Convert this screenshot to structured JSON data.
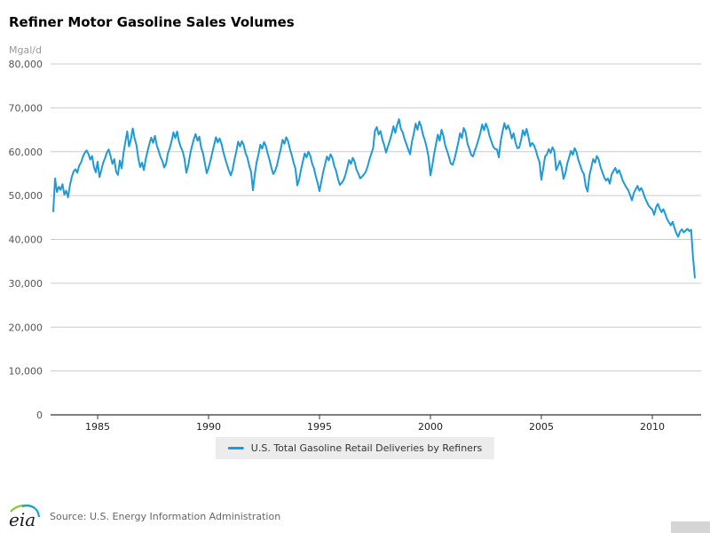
{
  "header": {
    "title": "Refiner Motor Gasoline Sales Volumes"
  },
  "chart_data": {
    "type": "line",
    "title": "Refiner Motor Gasoline Sales Volumes",
    "ylabel": "Mgal/d",
    "unit_label": "Mgal/d",
    "ylim": [
      0,
      80000
    ],
    "y_ticks": [
      0,
      10000,
      20000,
      30000,
      40000,
      50000,
      60000,
      70000,
      80000
    ],
    "x_ticks": [
      1985,
      1990,
      1995,
      2000,
      2005,
      2010
    ],
    "grid": "horizontal",
    "legend_position": "bottom-center",
    "colors": {
      "line": "#1f9ad6",
      "gridline": "#cccccc",
      "axis": "#000000",
      "y_label": "#555555",
      "x_label": "#222222"
    },
    "series": [
      {
        "name": "U.S. Total Gasoline Retail Deliveries by Refiners",
        "color": "#1f9ad6",
        "start_year": 1983,
        "frequency": "monthly",
        "values": [
          46400,
          53900,
          50800,
          52000,
          51300,
          52600,
          50200,
          51100,
          49600,
          52300,
          54200,
          55500,
          56000,
          55200,
          56800,
          57500,
          58800,
          59700,
          60300,
          59500,
          58200,
          59000,
          56500,
          55300,
          57700,
          54200,
          55800,
          57500,
          58500,
          59800,
          60500,
          59000,
          57200,
          58300,
          55500,
          54700,
          58000,
          56200,
          59700,
          62200,
          64600,
          61200,
          62800,
          65300,
          63000,
          61500,
          58500,
          56500,
          57500,
          55800,
          58300,
          60100,
          61800,
          63200,
          62000,
          63600,
          61400,
          60200,
          58800,
          57900,
          56400,
          57200,
          59600,
          60800,
          62400,
          64400,
          63100,
          64600,
          62300,
          61000,
          60100,
          58300,
          55200,
          56800,
          59300,
          61200,
          62800,
          64000,
          62500,
          63400,
          60900,
          59600,
          57400,
          55100,
          56300,
          57900,
          59800,
          61500,
          63300,
          62100,
          63000,
          61800,
          59900,
          58400,
          57000,
          55700,
          54600,
          55900,
          58200,
          60000,
          62300,
          61200,
          62400,
          61500,
          59700,
          58600,
          56800,
          55400,
          51200,
          54800,
          57600,
          59400,
          61600,
          60700,
          62200,
          61300,
          59500,
          58100,
          56300,
          54900,
          55600,
          56900,
          58800,
          60500,
          62700,
          61800,
          63300,
          62400,
          60600,
          59200,
          57500,
          56100,
          52300,
          53700,
          55900,
          57800,
          59600,
          58700,
          60000,
          59100,
          57300,
          56200,
          54400,
          52800,
          51000,
          53200,
          55400,
          57100,
          58900,
          58000,
          59400,
          58500,
          56700,
          55600,
          53800,
          52400,
          52900,
          53500,
          54700,
          56300,
          58100,
          57200,
          58600,
          57700,
          55900,
          55000,
          53900,
          54300,
          54800,
          55400,
          56600,
          58200,
          59500,
          60800,
          64800,
          65600,
          63900,
          64700,
          62800,
          61500,
          59800,
          61200,
          62500,
          64000,
          65800,
          64300,
          66100,
          67400,
          65200,
          64400,
          62900,
          61700,
          60500,
          59400,
          62300,
          64100,
          66400,
          65000,
          66900,
          65700,
          63800,
          62600,
          60900,
          58700,
          54600,
          56800,
          59500,
          61700,
          63900,
          62500,
          65000,
          63600,
          61400,
          60200,
          58800,
          57300,
          57000,
          58300,
          60100,
          62000,
          64200,
          63100,
          65400,
          64500,
          61900,
          60700,
          59300,
          58900,
          60200,
          61400,
          62800,
          64300,
          66200,
          64900,
          66400,
          65300,
          63500,
          62300,
          61100,
          60600,
          60500,
          58700,
          62400,
          64600,
          66500,
          65100,
          66000,
          64800,
          63000,
          64200,
          62100,
          60800,
          60900,
          62600,
          64900,
          63700,
          65200,
          63400,
          61200,
          62000,
          61500,
          60300,
          58800,
          57600,
          53600,
          56200,
          58900,
          59400,
          60600,
          59700,
          61000,
          60100,
          55800,
          56700,
          57900,
          56400,
          53800,
          55100,
          57300,
          58700,
          60200,
          59300,
          60800,
          59900,
          58100,
          56900,
          55600,
          54900,
          52100,
          50900,
          54600,
          56400,
          58300,
          57500,
          59000,
          58200,
          56500,
          55300,
          54100,
          53400,
          53900,
          52700,
          54800,
          55600,
          56300,
          55100,
          55800,
          54700,
          53400,
          52600,
          51800,
          51200,
          50100,
          48900,
          50600,
          51400,
          52200,
          51100,
          51700,
          50800,
          49500,
          48600,
          47700,
          47200,
          46800,
          45600,
          47300,
          48100,
          47000,
          46200,
          46900,
          45800,
          44600,
          43900,
          43200,
          44000,
          42600,
          41400,
          40600,
          41800,
          42300,
          41600,
          42000,
          42400,
          41900,
          42200,
          36000,
          31300
        ]
      }
    ]
  },
  "footer": {
    "logo_text": "eia",
    "source": "Source: U.S. Energy Information Administration"
  }
}
